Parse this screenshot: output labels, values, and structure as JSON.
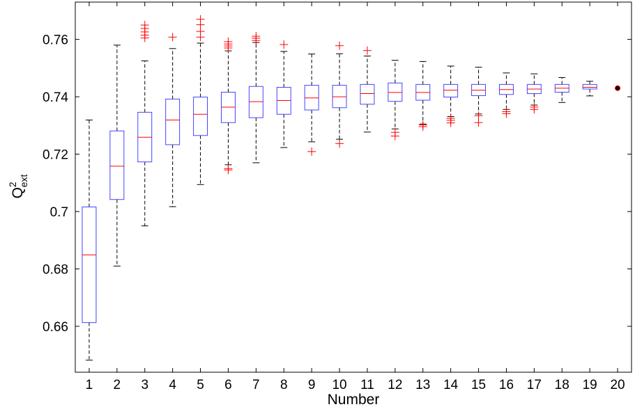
{
  "chart_data": {
    "type": "boxplot",
    "xlabel": "Number",
    "ylabel": {
      "base": "Q",
      "sup": "2",
      "sub": "ext"
    },
    "categories": [
      "1",
      "2",
      "3",
      "4",
      "5",
      "6",
      "7",
      "8",
      "9",
      "10",
      "11",
      "12",
      "13",
      "14",
      "15",
      "16",
      "17",
      "18",
      "19",
      "20"
    ],
    "ylim": [
      0.644,
      0.773
    ],
    "yticks": [
      0.66,
      0.68,
      0.7,
      0.72,
      0.74,
      0.76
    ],
    "ytick_labels": [
      "0.66",
      "0.68",
      "0.7",
      "0.72",
      "0.74",
      "0.76"
    ],
    "grid": false,
    "boxes": [
      {
        "label": "1",
        "wlo": 0.6482,
        "q1": 0.6613,
        "med": 0.6849,
        "q3": 0.7016,
        "whi": 0.7319,
        "outliers": []
      },
      {
        "label": "2",
        "wlo": 0.681,
        "q1": 0.7042,
        "med": 0.7158,
        "q3": 0.7281,
        "whi": 0.758,
        "outliers": []
      },
      {
        "label": "3",
        "wlo": 0.695,
        "q1": 0.7173,
        "med": 0.7259,
        "q3": 0.7346,
        "whi": 0.7525,
        "outliers": [
          0.7605,
          0.7615,
          0.7626,
          0.7638,
          0.765
        ]
      },
      {
        "label": "4",
        "wlo": 0.7017,
        "q1": 0.7233,
        "med": 0.7319,
        "q3": 0.7392,
        "whi": 0.7568,
        "outliers": [
          0.7608
        ]
      },
      {
        "label": "5",
        "wlo": 0.7094,
        "q1": 0.7265,
        "med": 0.7339,
        "q3": 0.7399,
        "whi": 0.7587,
        "outliers": [
          0.7608,
          0.7628,
          0.7651,
          0.767
        ]
      },
      {
        "label": "6",
        "wlo": 0.7163,
        "q1": 0.731,
        "med": 0.7364,
        "q3": 0.7416,
        "whi": 0.756,
        "outliers": [
          0.7145,
          0.715,
          0.757,
          0.7577,
          0.7584,
          0.7592
        ]
      },
      {
        "label": "7",
        "wlo": 0.717,
        "q1": 0.7327,
        "med": 0.7383,
        "q3": 0.7436,
        "whi": 0.7589,
        "outliers": [
          0.7596,
          0.7604,
          0.7611
        ]
      },
      {
        "label": "8",
        "wlo": 0.7223,
        "q1": 0.7339,
        "med": 0.7387,
        "q3": 0.7433,
        "whi": 0.7558,
        "outliers": [
          0.7582
        ]
      },
      {
        "label": "9",
        "wlo": 0.7243,
        "q1": 0.7354,
        "med": 0.7396,
        "q3": 0.744,
        "whi": 0.7549,
        "outliers": [
          0.7209
        ]
      },
      {
        "label": "10",
        "wlo": 0.7252,
        "q1": 0.7362,
        "med": 0.74,
        "q3": 0.744,
        "whi": 0.755,
        "outliers": [
          0.7237,
          0.7578
        ]
      },
      {
        "label": "11",
        "wlo": 0.7277,
        "q1": 0.7374,
        "med": 0.7411,
        "q3": 0.7443,
        "whi": 0.7542,
        "outliers": [
          0.7561
        ]
      },
      {
        "label": "12",
        "wlo": 0.7288,
        "q1": 0.7384,
        "med": 0.7415,
        "q3": 0.7448,
        "whi": 0.7527,
        "outliers": [
          0.7263,
          0.7276
        ]
      },
      {
        "label": "13",
        "wlo": 0.7305,
        "q1": 0.7388,
        "med": 0.7415,
        "q3": 0.7443,
        "whi": 0.7523,
        "outliers": [
          0.7296,
          0.7302
        ]
      },
      {
        "label": "14",
        "wlo": 0.7331,
        "q1": 0.7399,
        "med": 0.7423,
        "q3": 0.7443,
        "whi": 0.7507,
        "outliers": [
          0.7309,
          0.7318,
          0.7325
        ]
      },
      {
        "label": "15",
        "wlo": 0.734,
        "q1": 0.7404,
        "med": 0.7423,
        "q3": 0.7443,
        "whi": 0.7503,
        "outliers": [
          0.731,
          0.7334
        ]
      },
      {
        "label": "16",
        "wlo": 0.7356,
        "q1": 0.7408,
        "med": 0.7425,
        "q3": 0.7443,
        "whi": 0.7483,
        "outliers": [
          0.7341,
          0.7348
        ]
      },
      {
        "label": "17",
        "wlo": 0.7371,
        "q1": 0.7411,
        "med": 0.7427,
        "q3": 0.7443,
        "whi": 0.748,
        "outliers": [
          0.7356,
          0.7364
        ]
      },
      {
        "label": "18",
        "wlo": 0.738,
        "q1": 0.7416,
        "med": 0.743,
        "q3": 0.7443,
        "whi": 0.7467,
        "outliers": []
      },
      {
        "label": "19",
        "wlo": 0.7403,
        "q1": 0.7427,
        "med": 0.7433,
        "q3": 0.7443,
        "whi": 0.7454,
        "outliers": []
      },
      {
        "label": "20",
        "wlo": 0.743,
        "q1": 0.743,
        "med": 0.743,
        "q3": 0.743,
        "whi": 0.743,
        "outliers": [],
        "point": 0.743
      }
    ],
    "colors": {
      "box": "#4444ff",
      "whisker": "#000000",
      "median": "#ff0000",
      "outlier": "#ff0000",
      "point": "#000000"
    }
  }
}
